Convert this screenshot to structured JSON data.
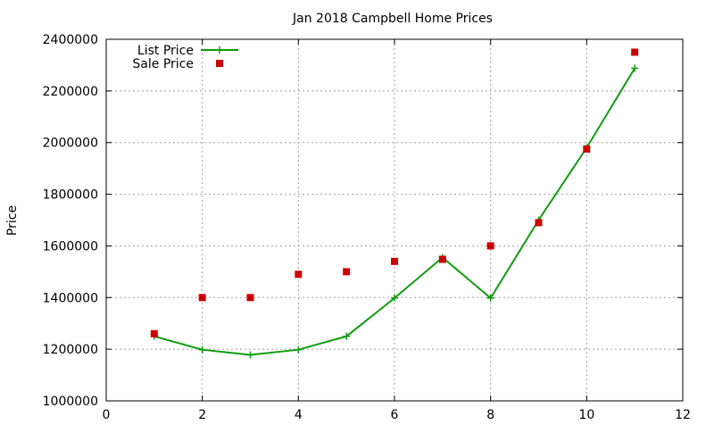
{
  "chart_data": {
    "type": "line",
    "title": "Jan 2018 Campbell Home Prices",
    "xlabel": "",
    "ylabel": "Price",
    "xlim": [
      0,
      12
    ],
    "ylim": [
      1000000,
      2400000
    ],
    "x_ticks": [
      0,
      2,
      4,
      6,
      8,
      10,
      12
    ],
    "y_ticks": [
      1000000,
      1200000,
      1400000,
      1600000,
      1800000,
      2000000,
      2200000,
      2400000
    ],
    "grid": true,
    "legend_position": "top-left",
    "series": [
      {
        "name": "List Price",
        "style": "line-plus",
        "color": "#109c10",
        "x": [
          1,
          2,
          3,
          4,
          5,
          6,
          7,
          8,
          9,
          10,
          11
        ],
        "y": [
          1250000,
          1198000,
          1178000,
          1198000,
          1250000,
          1398000,
          1555000,
          1398000,
          1700000,
          1980000,
          2288000
        ]
      },
      {
        "name": "Sale Price",
        "style": "square-points",
        "color": "#cc0000",
        "x": [
          1,
          2,
          3,
          4,
          5,
          6,
          7,
          8,
          9,
          10,
          11
        ],
        "y": [
          1260000,
          1400000,
          1400000,
          1490000,
          1500000,
          1540000,
          1548000,
          1600000,
          1690000,
          1975000,
          2350000
        ]
      }
    ]
  }
}
